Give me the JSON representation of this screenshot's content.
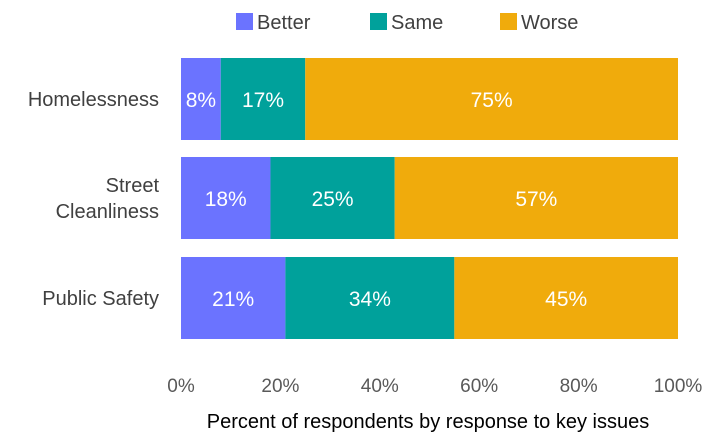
{
  "chart_data": {
    "type": "bar",
    "orientation": "horizontal",
    "stacked": true,
    "categories": [
      "Homelessness",
      "Street Cleanliness",
      "Public Safety"
    ],
    "category_display": [
      [
        "Homelessness"
      ],
      [
        "Street",
        "Cleanliness"
      ],
      [
        "Public Safety"
      ]
    ],
    "series": [
      {
        "name": "Better",
        "color": "#6b73ff",
        "values": [
          8,
          18,
          21
        ],
        "labels": [
          "8%",
          "18%",
          "21%"
        ]
      },
      {
        "name": "Same",
        "color": "#00a19b",
        "values": [
          17,
          25,
          34
        ],
        "labels": [
          "17%",
          "25%",
          "34%"
        ]
      },
      {
        "name": "Worse",
        "color": "#f0ab0c",
        "values": [
          75,
          57,
          45
        ],
        "labels": [
          "75%",
          "57%",
          "45%"
        ]
      }
    ],
    "xlim": [
      0,
      100
    ],
    "x_ticks": [
      0,
      20,
      40,
      60,
      80,
      100
    ],
    "x_tick_labels": [
      "0%",
      "20%",
      "40%",
      "60%",
      "80%",
      "100%"
    ],
    "xlabel": "Percent of respondents by response to key issues",
    "title": "",
    "grid": false,
    "legend_position": "top"
  }
}
